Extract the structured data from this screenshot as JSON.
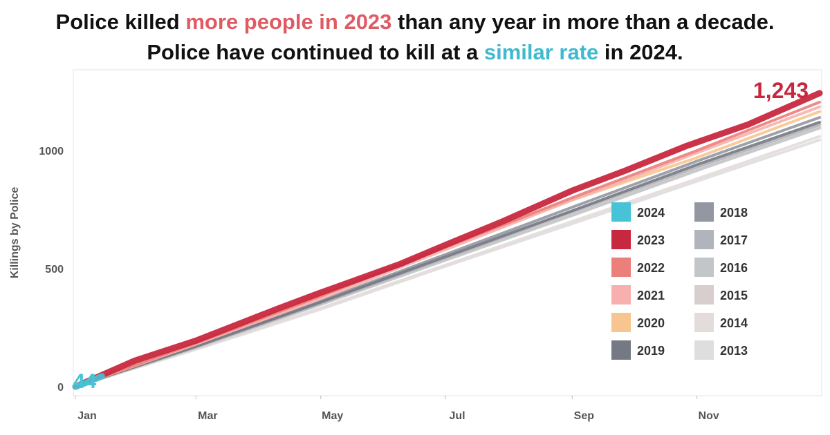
{
  "title": {
    "line1": {
      "before": "Police killed ",
      "highlight": "more people in 2023",
      "after": " than any year in more than a decade."
    },
    "line2": {
      "before": "Police have continued to kill at a ",
      "highlight": "similar rate",
      "after": " in 2024."
    }
  },
  "colors": {
    "highlight_red": "#e05a63",
    "highlight_cyan": "#3fb9cf"
  },
  "chart_data": {
    "type": "line",
    "title": "",
    "xlabel": "",
    "ylabel": "Killings by Police",
    "x_ticks": [
      "Jan",
      "Mar",
      "May",
      "Jul",
      "Sep",
      "Nov"
    ],
    "y_ticks": [
      0,
      500,
      1000
    ],
    "ylim": [
      0,
      1300
    ],
    "x_unit": "day of year",
    "xlim": [
      1,
      365
    ],
    "x_tick_days": [
      1,
      60,
      121,
      182,
      244,
      305
    ],
    "grid": false,
    "legend": "bottom-right, two columns",
    "annotations": [
      {
        "text": "44",
        "series": "2024",
        "x": 14,
        "y": 44
      },
      {
        "text": "1,243",
        "series": "2023",
        "x": 365,
        "y": 1243
      }
    ],
    "series": [
      {
        "name": "2024",
        "color": "#46c3d6",
        "x": [
          1,
          5,
          10,
          14
        ],
        "y": [
          0,
          12,
          30,
          44
        ]
      },
      {
        "name": "2023",
        "color": "#c8283f",
        "x": [
          1,
          30,
          60,
          100,
          120,
          160,
          182,
          210,
          244,
          270,
          300,
          330,
          365
        ],
        "y": [
          0,
          110,
          195,
          330,
          395,
          520,
          600,
          700,
          830,
          915,
          1020,
          1110,
          1243
        ]
      },
      {
        "name": "2022",
        "color": "#ea8079",
        "x": [
          1,
          60,
          120,
          182,
          244,
          305,
          365
        ],
        "y": [
          0,
          185,
          380,
          590,
          800,
          1000,
          1205
        ]
      },
      {
        "name": "2021",
        "color": "#f7b0ae",
        "x": [
          1,
          60,
          120,
          182,
          244,
          305,
          365
        ],
        "y": [
          0,
          180,
          370,
          580,
          790,
          990,
          1185
        ]
      },
      {
        "name": "2020",
        "color": "#f7c590",
        "x": [
          1,
          60,
          120,
          182,
          244,
          305,
          365
        ],
        "y": [
          0,
          180,
          385,
          595,
          790,
          970,
          1165
        ]
      },
      {
        "name": "2019",
        "color": "#757983",
        "x": [
          1,
          60,
          120,
          182,
          244,
          305,
          365
        ],
        "y": [
          0,
          170,
          355,
          550,
          745,
          940,
          1120
        ]
      },
      {
        "name": "2018",
        "color": "#9297a1",
        "x": [
          1,
          60,
          120,
          182,
          244,
          305,
          365
        ],
        "y": [
          0,
          175,
          360,
          560,
          760,
          955,
          1140
        ]
      },
      {
        "name": "2017",
        "color": "#b1b4ba",
        "x": [
          1,
          60,
          120,
          182,
          244,
          305,
          365
        ],
        "y": [
          0,
          170,
          350,
          545,
          740,
          930,
          1110
        ]
      },
      {
        "name": "2016",
        "color": "#c3c6c8",
        "x": [
          1,
          60,
          120,
          182,
          244,
          305,
          365
        ],
        "y": [
          0,
          165,
          345,
          535,
          725,
          915,
          1095
        ]
      },
      {
        "name": "2015",
        "color": "#d8cece",
        "x": [
          1,
          60,
          120,
          182,
          244,
          305,
          365
        ],
        "y": [
          0,
          170,
          350,
          540,
          730,
          920,
          1100
        ]
      },
      {
        "name": "2014",
        "color": "#e4dcda",
        "x": [
          1,
          60,
          120,
          182,
          244,
          305,
          365
        ],
        "y": [
          0,
          160,
          330,
          515,
          700,
          880,
          1060
        ]
      },
      {
        "name": "2013",
        "color": "#dedede",
        "x": [
          1,
          60,
          120,
          182,
          244,
          305,
          365
        ],
        "y": [
          0,
          158,
          325,
          510,
          690,
          870,
          1045
        ]
      }
    ]
  }
}
